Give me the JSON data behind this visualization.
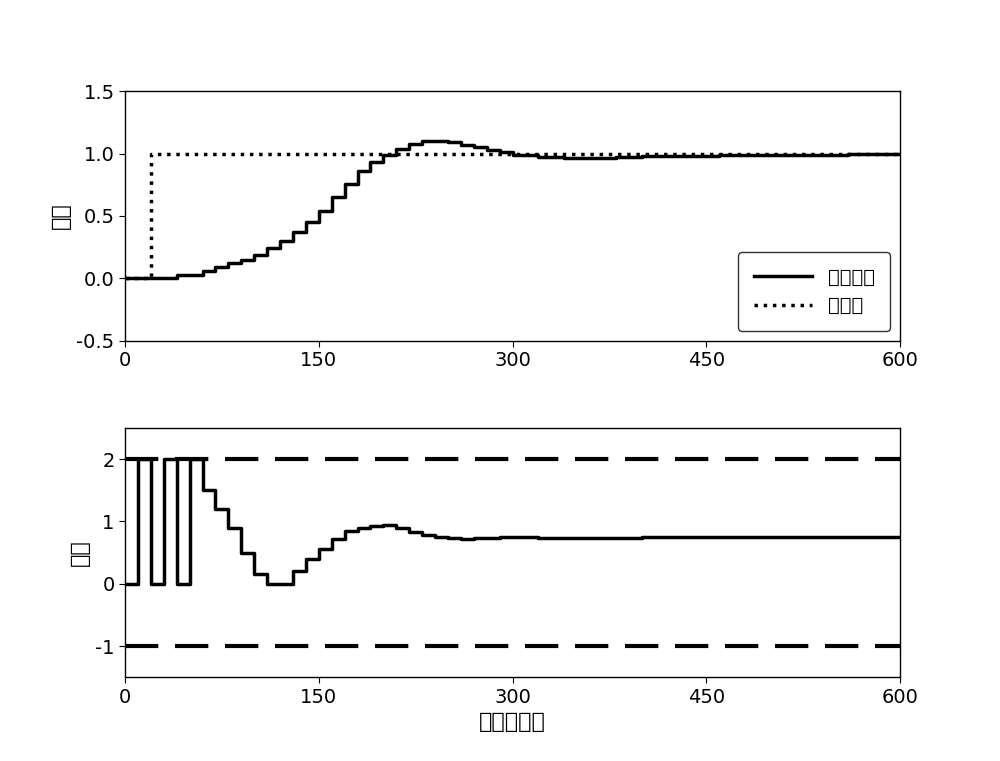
{
  "top_plot": {
    "ylabel": "输出",
    "ylim": [
      -0.5,
      1.5
    ],
    "yticks": [
      -0.5,
      0,
      0.5,
      1,
      1.5
    ],
    "xlim": [
      0,
      600
    ],
    "xticks": [
      0,
      150,
      300,
      450,
      600
    ],
    "setpoint_value": 1.0,
    "setpoint_x": [
      0,
      20,
      20,
      600
    ],
    "setpoint_y": [
      0,
      0,
      1.0,
      1.0
    ],
    "process_output_x": [
      0,
      20,
      30,
      40,
      50,
      60,
      70,
      80,
      90,
      100,
      110,
      120,
      130,
      140,
      150,
      160,
      170,
      180,
      190,
      200,
      210,
      220,
      230,
      240,
      250,
      260,
      270,
      280,
      290,
      300,
      320,
      340,
      360,
      380,
      400,
      430,
      460,
      490,
      520,
      560,
      600
    ],
    "process_output_y": [
      0.0,
      0.0,
      0.0,
      0.03,
      0.03,
      0.06,
      0.09,
      0.12,
      0.15,
      0.19,
      0.24,
      0.3,
      0.37,
      0.45,
      0.54,
      0.65,
      0.76,
      0.86,
      0.93,
      0.99,
      1.04,
      1.08,
      1.1,
      1.1,
      1.09,
      1.07,
      1.05,
      1.03,
      1.01,
      0.99,
      0.975,
      0.965,
      0.965,
      0.972,
      0.978,
      0.984,
      0.988,
      0.991,
      0.993,
      0.996,
      0.998
    ],
    "legend_labels": [
      "过程输出",
      "设定点"
    ],
    "legend_loc": "lower right"
  },
  "bottom_plot": {
    "ylabel": "输入",
    "xlabel": "时间（秒）",
    "ylim": [
      -1.5,
      2.5
    ],
    "yticks": [
      -1,
      0,
      1,
      2
    ],
    "xlim": [
      0,
      600
    ],
    "xticks": [
      0,
      150,
      300,
      450,
      600
    ],
    "upper_bound": 2.0,
    "lower_bound": -1.0,
    "input_x": [
      0,
      10,
      20,
      30,
      40,
      50,
      60,
      70,
      80,
      90,
      100,
      110,
      120,
      130,
      140,
      150,
      160,
      170,
      180,
      190,
      200,
      210,
      220,
      230,
      240,
      250,
      260,
      270,
      280,
      290,
      300,
      320,
      340,
      360,
      380,
      400,
      430,
      460,
      490,
      520,
      560,
      600
    ],
    "input_y": [
      0.0,
      2.0,
      0.0,
      2.0,
      0.0,
      2.0,
      1.5,
      1.2,
      0.9,
      0.5,
      0.15,
      0.0,
      0.0,
      0.2,
      0.4,
      0.55,
      0.72,
      0.85,
      0.9,
      0.93,
      0.95,
      0.9,
      0.83,
      0.78,
      0.75,
      0.73,
      0.72,
      0.73,
      0.74,
      0.75,
      0.75,
      0.74,
      0.74,
      0.74,
      0.74,
      0.75,
      0.75,
      0.75,
      0.75,
      0.75,
      0.75,
      0.75
    ]
  },
  "line_color": "#000000",
  "linewidth": 2.5,
  "fontsize_label": 16,
  "fontsize_tick": 14,
  "fontsize_legend": 14,
  "background_color": "#ffffff",
  "font_paths": []
}
